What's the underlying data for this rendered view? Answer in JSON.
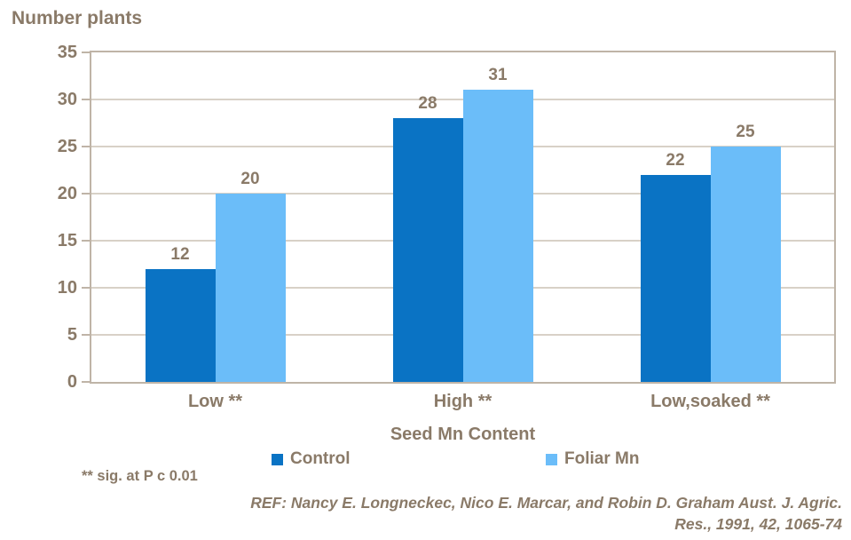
{
  "colors": {
    "text_brown": "#8a7a68",
    "gridline": "#d8d1c7",
    "axis_frame": "#bfb4a7",
    "control_blue": "#0a73c4",
    "foliar_blue": "#6bbdf9"
  },
  "chart_data": {
    "type": "bar",
    "title": "Number plants",
    "xlabel": "Seed Mn Content",
    "ylabel": "Number plants",
    "categories": [
      "Low **",
      "High **",
      "Low,soaked **"
    ],
    "series": [
      {
        "name": "Control",
        "color": "#0a73c4",
        "values": [
          12,
          28,
          22
        ]
      },
      {
        "name": "Foliar Mn",
        "color": "#6bbdf9",
        "values": [
          20,
          31,
          25
        ]
      }
    ],
    "ylim": [
      0,
      35
    ],
    "yticks": [
      0,
      5,
      10,
      15,
      20,
      25,
      30,
      35
    ],
    "grid": true,
    "bar_labels": true,
    "legend_position": "bottom"
  },
  "footnotes": {
    "significance": "** sig. at P c 0.01",
    "reference_line1": "REF: Nancy E. Longneckec, Nico E. Marcar, and Robin D. Graham Aust. J. Agric.",
    "reference_line2": "Res., 1991, 42, 1065-74"
  }
}
